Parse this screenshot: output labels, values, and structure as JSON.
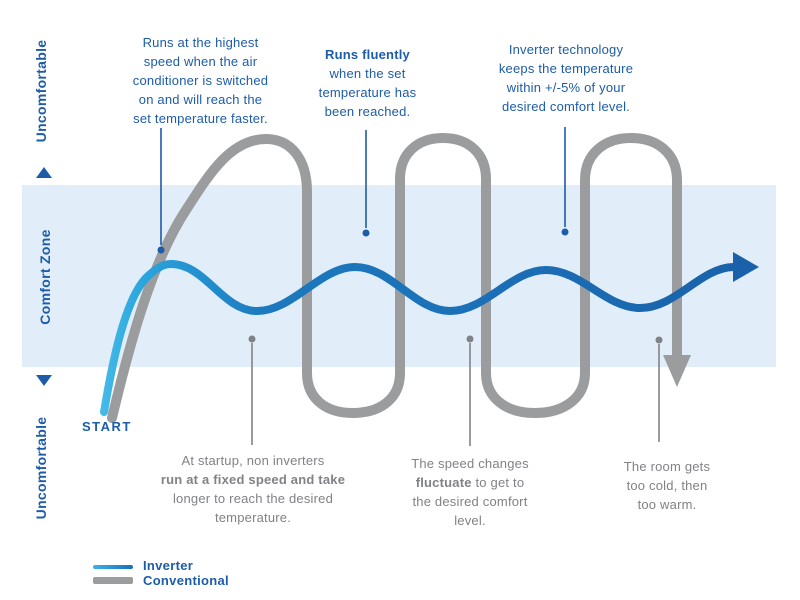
{
  "left_axis": {
    "top_label": "Uncomfortable",
    "middle_label": "Comfort Zone",
    "bottom_label": "Uncomfortable"
  },
  "start_label": "START",
  "top_callouts": [
    {
      "lines": [
        "Runs at the highest",
        "speed when the air",
        "conditioner is switched",
        "on and will reach the",
        "set temperature faster."
      ]
    },
    {
      "lines": [
        "**Runs fluently**",
        "when the set",
        "temperature has",
        "been reached."
      ]
    },
    {
      "lines": [
        "Inverter technology",
        "keeps the temperature",
        "within +/-5% of your",
        "desired comfort level."
      ]
    }
  ],
  "bottom_callouts": [
    {
      "lines": [
        "At startup, non inverters",
        "**run at a fixed speed and take**",
        "longer to reach the desired",
        "temperature."
      ]
    },
    {
      "lines": [
        "The speed changes",
        "**fluctuate** to get to",
        "the desired comfort",
        "level."
      ]
    },
    {
      "lines": [
        "The room gets",
        "too cold, then",
        "too warm."
      ]
    }
  ],
  "legend": {
    "items": [
      {
        "label": "Inverter",
        "color": "#1b75bb"
      },
      {
        "label": "Conventional",
        "color": "#9a9c9e"
      }
    ]
  },
  "curves": [
    {
      "name": "Inverter",
      "style": "smooth wave settling in comfort zone",
      "color_start": "#45bbe8",
      "color_end": "#1a61a9"
    },
    {
      "name": "Conventional",
      "style": "square-wave loops overshooting comfort zone",
      "color": "#9a9c9e"
    }
  ],
  "colors": {
    "blue_text": "#1d5ca9",
    "gray_text": "#808285",
    "gray_curve": "#9a9c9e",
    "comfort_band": "#e1eef9"
  }
}
